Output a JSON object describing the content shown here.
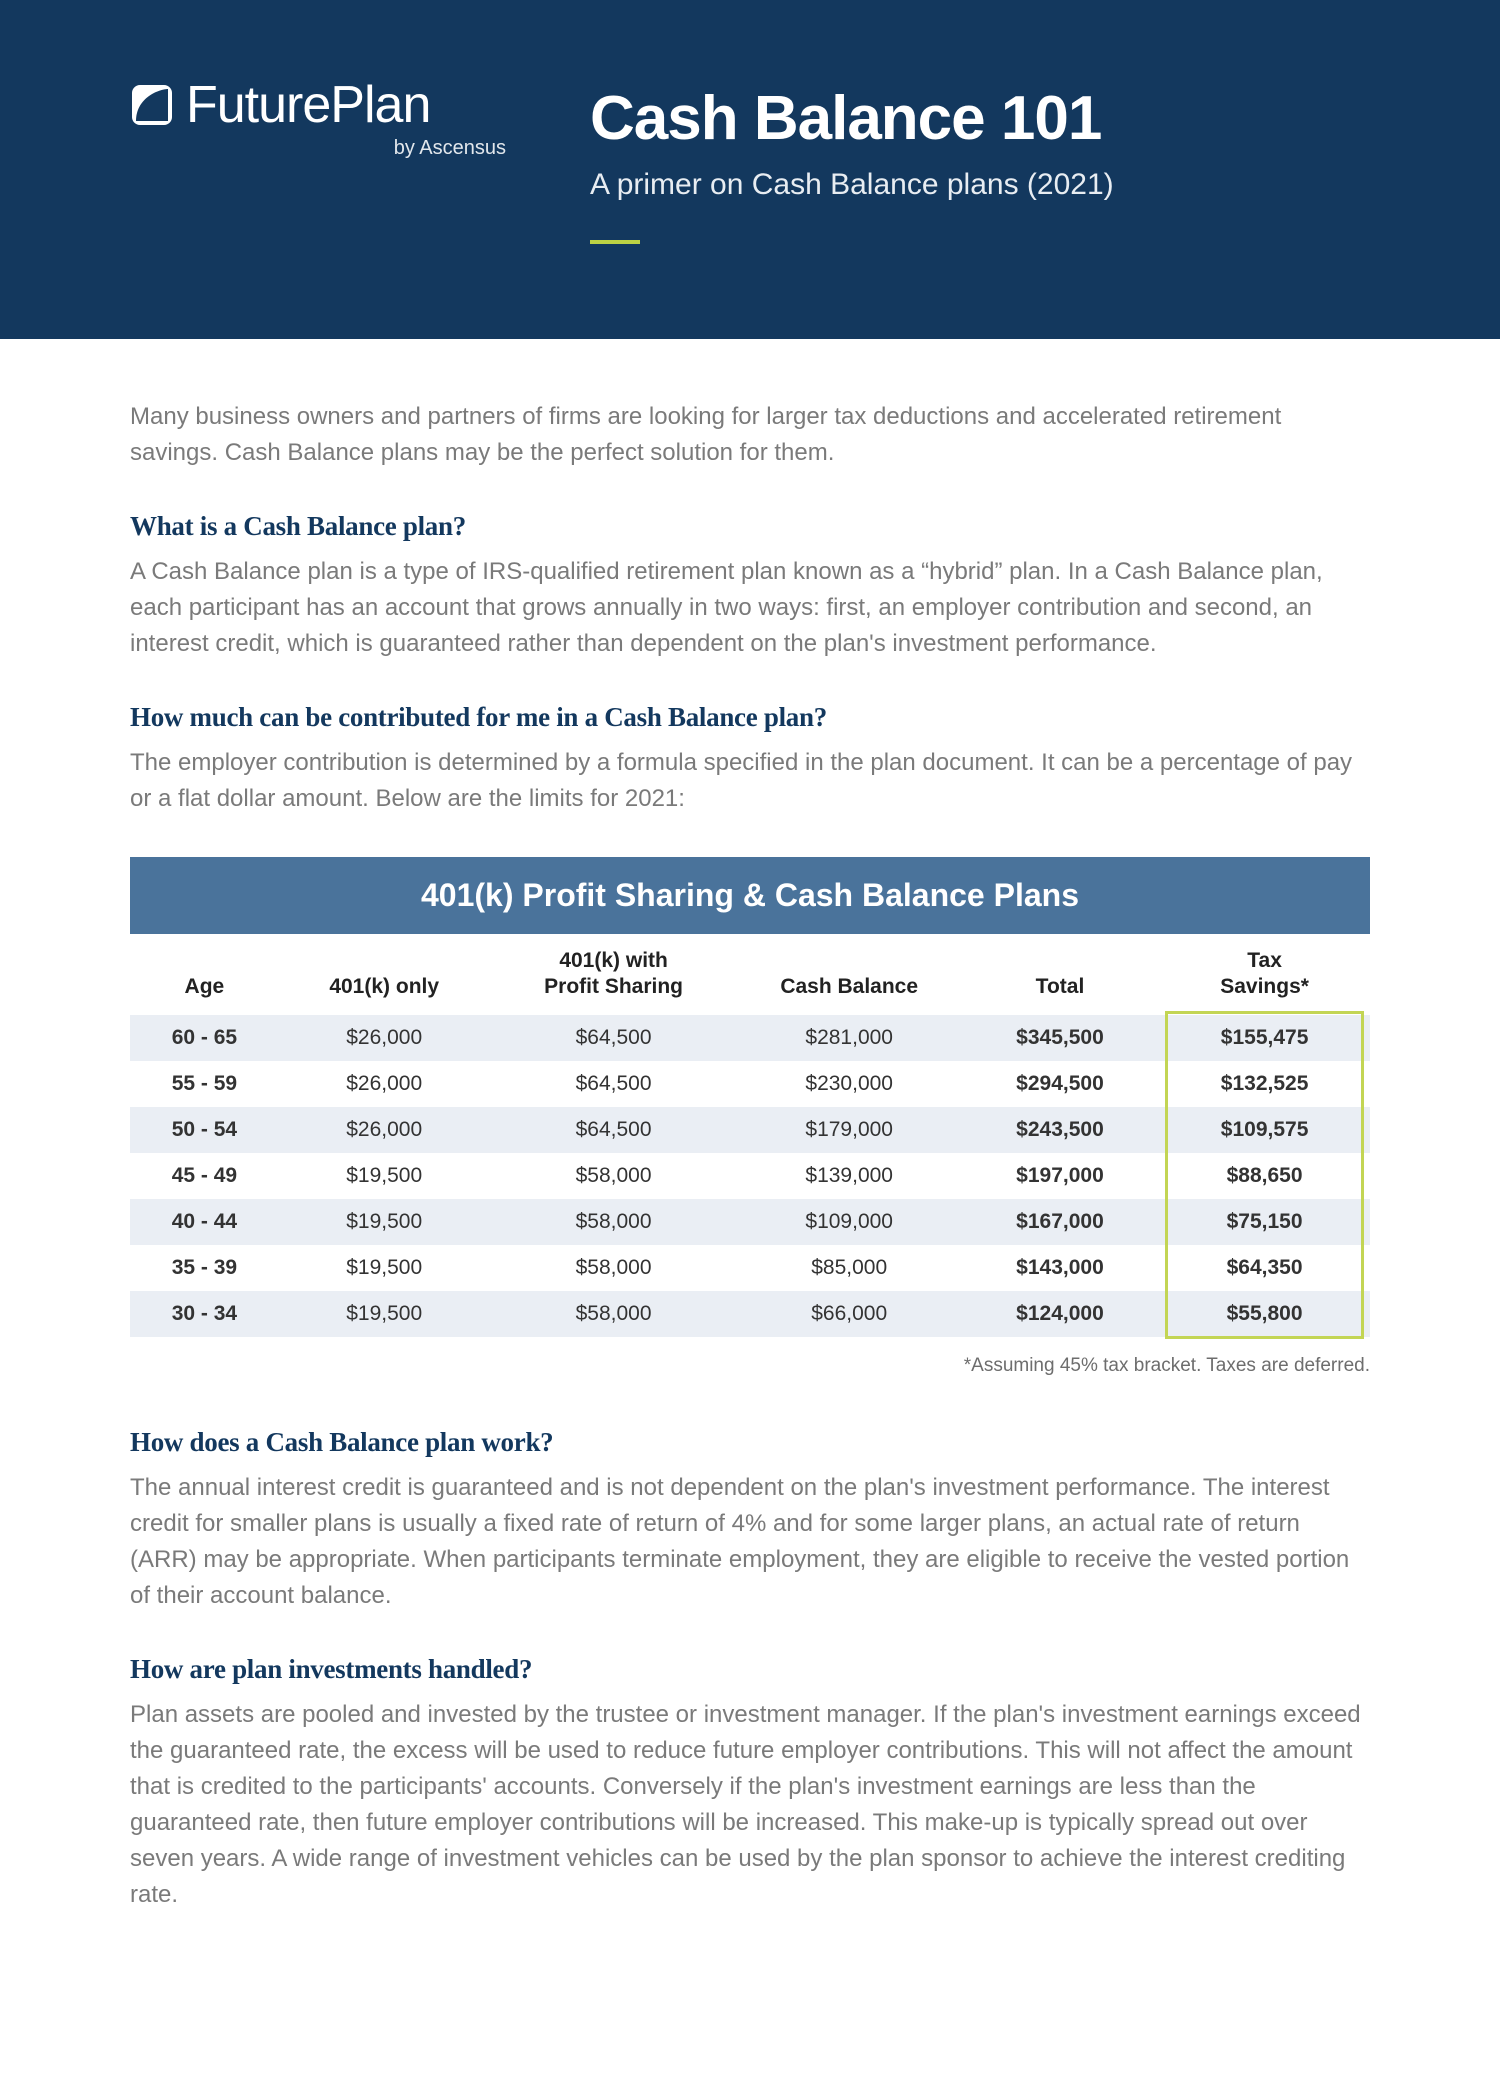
{
  "header": {
    "logo_name": "FuturePlan",
    "logo_sub": "by Ascensus",
    "title": "Cash Balance 101",
    "subtitle": "A primer on Cash Balance plans (2021)",
    "bg_color": "#13385e",
    "accent_color": "#bcd244"
  },
  "intro": "Many business owners and partners of firms are looking for larger tax deductions and accelerated retirement savings. Cash Balance plans may be the perfect solution for them.",
  "sections": [
    {
      "heading": "What is a Cash Balance plan?",
      "body": "A Cash Balance plan is a type of IRS-qualified retirement plan known as a “hybrid” plan. In a Cash Balance plan, each participant has an account that grows annually in two ways: first, an employer contribution and second, an interest credit, which is guaranteed rather than dependent on the plan's investment performance."
    },
    {
      "heading": "How much can be contributed for me in a Cash Balance plan?",
      "body": "The employer contribution is determined by a formula specified in the plan document. It can be a percentage of pay or a flat dollar amount. Below are the limits for 2021:"
    }
  ],
  "table": {
    "title": "401(k) Profit Sharing & Cash Balance Plans",
    "title_bg": "#4a739b",
    "row_stripe_color": "#eaeef4",
    "highlight_border_color": "#c3d554",
    "columns": [
      "Age",
      "401(k) only",
      "401(k) with\nProfit Sharing",
      "Cash Balance",
      "Total",
      "Tax\nSavings*"
    ],
    "column_widths_pct": [
      12,
      17,
      20,
      18,
      16,
      17
    ],
    "bold_columns": [
      0,
      4,
      5
    ],
    "highlighted_column": 5,
    "rows": [
      [
        "60 - 65",
        "$26,000",
        "$64,500",
        "$281,000",
        "$345,500",
        "$155,475"
      ],
      [
        "55 - 59",
        "$26,000",
        "$64,500",
        "$230,000",
        "$294,500",
        "$132,525"
      ],
      [
        "50 - 54",
        "$26,000",
        "$64,500",
        "$179,000",
        "$243,500",
        "$109,575"
      ],
      [
        "45 - 49",
        "$19,500",
        "$58,000",
        "$139,000",
        "$197,000",
        "$88,650"
      ],
      [
        "40 - 44",
        "$19,500",
        "$58,000",
        "$109,000",
        "$167,000",
        "$75,150"
      ],
      [
        "35 - 39",
        "$19,500",
        "$58,000",
        "$85,000",
        "$143,000",
        "$64,350"
      ],
      [
        "30 - 34",
        "$19,500",
        "$58,000",
        "$66,000",
        "$124,000",
        "$55,800"
      ]
    ],
    "footnote": "*Assuming 45% tax bracket. Taxes are deferred."
  },
  "sections_after": [
    {
      "heading": "How does a Cash Balance plan work?",
      "body": "The annual interest credit is guaranteed and is not dependent on the plan's investment performance. The interest credit for smaller plans is usually a fixed rate of return of 4% and for some larger plans, an actual rate of return (ARR) may be appropriate. When participants terminate employment, they are eligible to receive the vested portion of their account balance."
    },
    {
      "heading": "How are plan investments handled?",
      "body": "Plan assets are pooled and invested by the trustee or investment manager. If the plan's investment earnings exceed the guaranteed rate, the excess will be used to reduce future employer contributions. This will not affect the amount that is credited to the participants' accounts. Conversely if the plan's investment earnings are less than the guaranteed rate, then future employer contributions will be increased. This make-up is typically spread out over seven years. A wide range of investment vehicles can be used by the plan sponsor to achieve the interest crediting rate."
    }
  ]
}
